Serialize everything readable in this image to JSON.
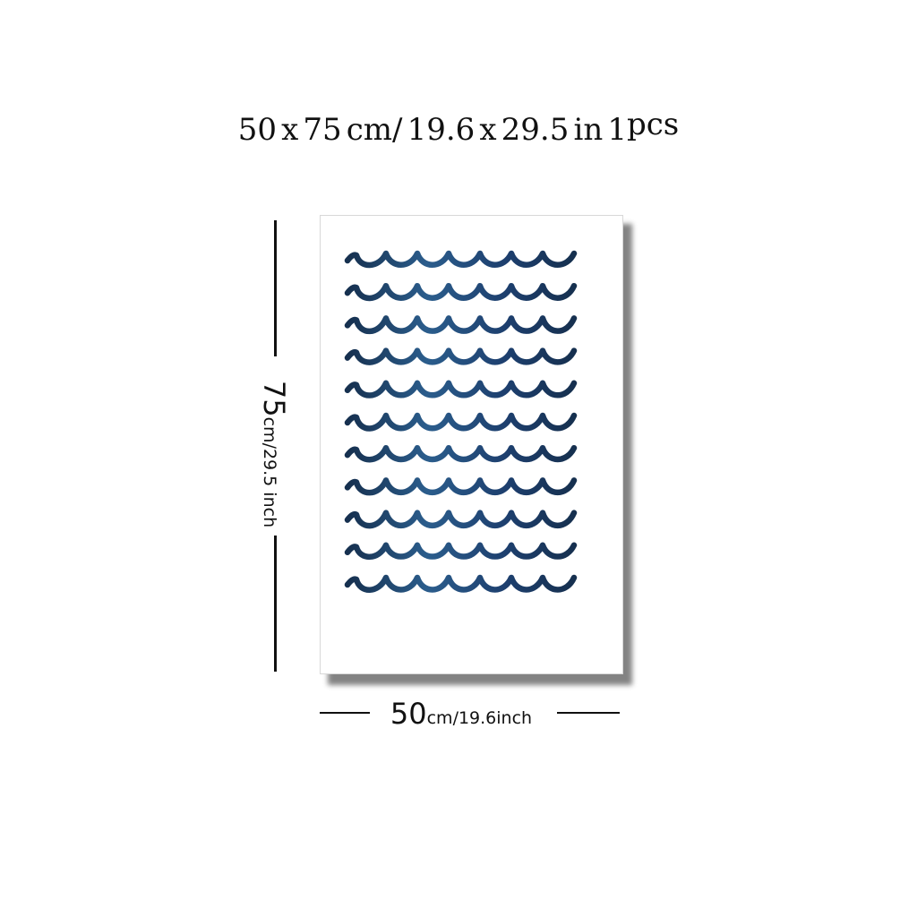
{
  "headline": {
    "width_value": "50",
    "times_1": "x",
    "height_value": "75",
    "cm_unit": "cm/",
    "width_inch": "19.6",
    "times_2": "x",
    "height_inch": "29.5",
    "inch_unit": "in",
    "quantity": "1",
    "quantity_unit": "pcs"
  },
  "height_dimension": {
    "value": "75",
    "unit_text": "cm/29.5 inch"
  },
  "width_dimension": {
    "value": "50",
    "unit_text": "cm/19.6inch"
  },
  "artwork": {
    "subject": "blue watercolor wave pattern",
    "wave_rows": 11,
    "colors": [
      "#1d3f6e",
      "#2b5d8c",
      "#16304f"
    ]
  }
}
